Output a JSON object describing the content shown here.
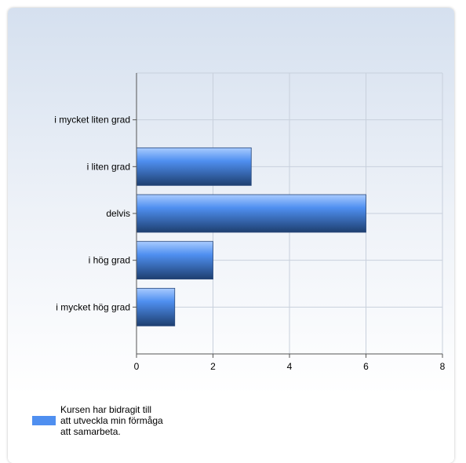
{
  "colors": {
    "bar_light": "#a9cbff",
    "bar_mid": "#4f8ff0",
    "bar_dark": "#1e3f70",
    "grid": "#c8d0dc",
    "axis": "#555555"
  },
  "chart_data": {
    "type": "bar",
    "orientation": "horizontal",
    "categories": [
      "i mycket liten grad",
      "i liten grad",
      "delvis",
      "i hög grad",
      "i mycket hög grad"
    ],
    "series": [
      {
        "name": "Kursen har bidragit till att utveckla min förmåga att samarbeta.",
        "values": [
          0,
          3,
          6,
          2,
          1
        ]
      }
    ],
    "xlim": [
      0,
      8
    ],
    "xticks": [
      0,
      2,
      4,
      6,
      8
    ],
    "grid": true,
    "legend_position": "bottom-left"
  },
  "legend": {
    "label": "Kursen har bidragit till\natt utveckla min förmåga\natt samarbeta."
  }
}
